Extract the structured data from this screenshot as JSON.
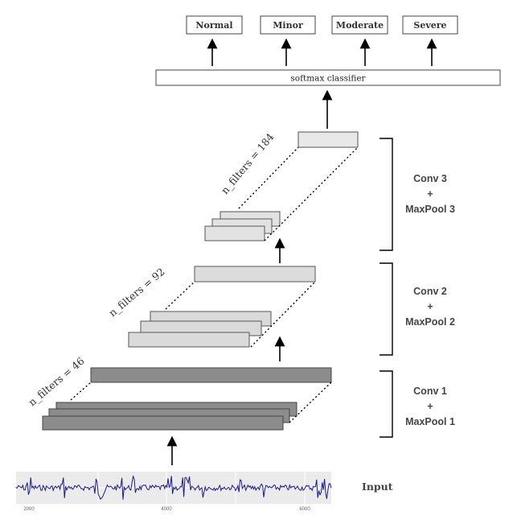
{
  "outputs": {
    "classes": [
      "Normal",
      "Minor",
      "Moderate",
      "Severe"
    ],
    "classifier_label": "softmax classifier"
  },
  "stages": [
    {
      "name_line1": "Conv 1",
      "plus": "+",
      "name_line2": "MaxPool 1",
      "filters_label": "n_filters = 46",
      "fill": "#8c8c8c"
    },
    {
      "name_line1": "Conv 2",
      "plus": "+",
      "name_line2": "MaxPool 2",
      "filters_label": "n_filters = 92",
      "fill": "#dcdcdc"
    },
    {
      "name_line1": "Conv 3",
      "plus": "+",
      "name_line2": "MaxPool 3",
      "filters_label": "n_filters = 184",
      "fill": "#e4e4e4"
    }
  ],
  "input": {
    "label": "Input",
    "axis_ticks": [
      "2000",
      "4000",
      "6000"
    ],
    "signal_color": "#1a1a8c"
  }
}
